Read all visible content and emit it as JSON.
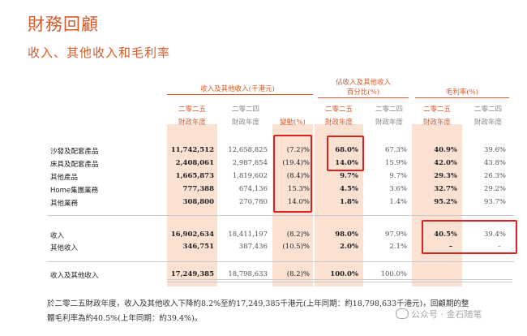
{
  "title": "財務回顧",
  "subtitle": "收入、其他收入和毛利率",
  "headers": {
    "group_revenue": "收入及其他收入(千港元)",
    "group_share_l1": "佔收入及其他收入",
    "group_share_l2": "百分比(%)",
    "group_margin": "毛利率(%)",
    "year_current": "二零二五",
    "year_prior": "二零二四",
    "fy": "財政年度",
    "change": "變動(%)"
  },
  "rows": [
    {
      "label": "沙發及配套產品",
      "rev25": "11,742,512",
      "rev24": "12,658,825",
      "chg": "(7.2)%",
      "sh25": "68.0%",
      "sh24": "67.3%",
      "gm25": "40.9%",
      "gm24": "39.6%"
    },
    {
      "label": "床具及配套產品",
      "rev25": "2,408,061",
      "rev24": "2,987,854",
      "chg": "(19.4)%",
      "sh25": "14.0%",
      "sh24": "15.9%",
      "gm25": "42.0%",
      "gm24": "43.8%"
    },
    {
      "label": "其他產品",
      "rev25": "1,665,873",
      "rev24": "1,819,602",
      "chg": "(8.4)%",
      "sh25": "9.7%",
      "sh24": "9.7%",
      "gm25": "29.3%",
      "gm24": "26.3%"
    },
    {
      "label": "Home集團業務",
      "rev25": "777,388",
      "rev24": "674,136",
      "chg": "15.3%",
      "sh25": "4.5%",
      "sh24": "3.6%",
      "gm25": "32.7%",
      "gm24": "29.2%"
    },
    {
      "label": "其他業務",
      "rev25": "308,800",
      "rev24": "270,780",
      "chg": "14.0%",
      "sh25": "1.8%",
      "sh24": "1.4%",
      "gm25": "95.2%",
      "gm24": "93.7%"
    },
    {
      "label": "收入",
      "rev25": "16,902,634",
      "rev24": "18,411,197",
      "chg": "(8.2)%",
      "sh25": "98.0%",
      "sh24": "97.9%",
      "gm25": "40.5%",
      "gm24": "39.4%"
    },
    {
      "label": "其他收入",
      "rev25": "346,751",
      "rev24": "387,436",
      "chg": "(10.5)%",
      "sh25": "2.0%",
      "sh24": "2.1%",
      "gm25": "–",
      "gm24": "–"
    },
    {
      "label": "收入及其他收入",
      "rev25": "17,249,385",
      "rev24": "18,798,633",
      "chg": "(8.2)%",
      "sh25": "100.0%",
      "sh24": "100.0%",
      "gm25": "",
      "gm24": ""
    }
  ],
  "footer": {
    "line1": "於二零二五財政年度，收入及其他收入下降約8.2%至約17,249,385千港元(上年同期：約18,798,633千港元)，回顧期的整",
    "line2": "體毛利率為約40.5%(上年同期：約39.4%)。"
  },
  "watermark": "公众号 · 金石随笔",
  "colors": {
    "accent": "#d65a2a",
    "band": "#fbe1d1",
    "highlight_box": "#e02020"
  }
}
